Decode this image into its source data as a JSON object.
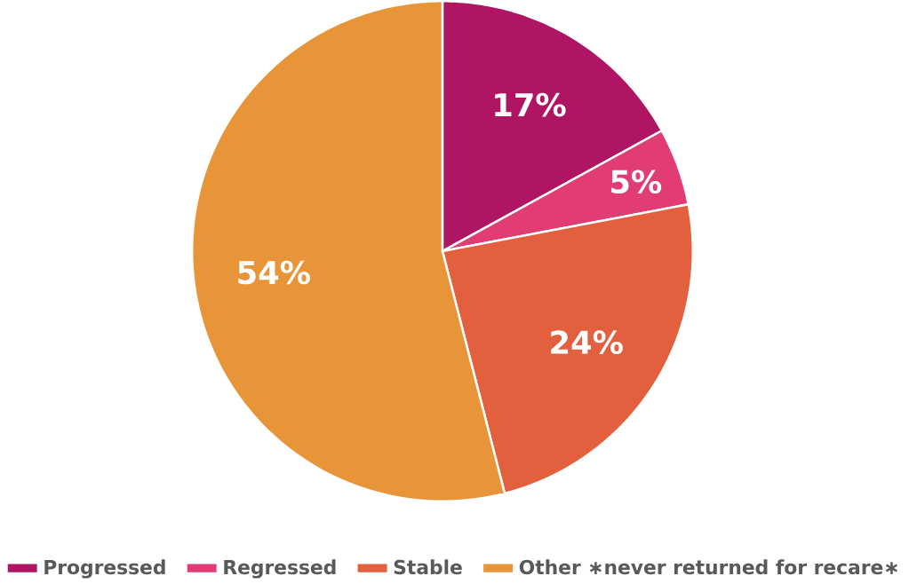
{
  "chart_data": {
    "type": "pie",
    "categories": [
      "Progressed",
      "Regressed",
      "Stable",
      "Other ∗never returned for recare∗"
    ],
    "values": [
      17,
      5,
      24,
      54
    ],
    "colors": [
      "#b01563",
      "#e23d73",
      "#e2603e",
      "#e8953a"
    ],
    "value_labels": [
      "17%",
      "5%",
      "24%",
      "54%"
    ],
    "legend": "bottom"
  }
}
